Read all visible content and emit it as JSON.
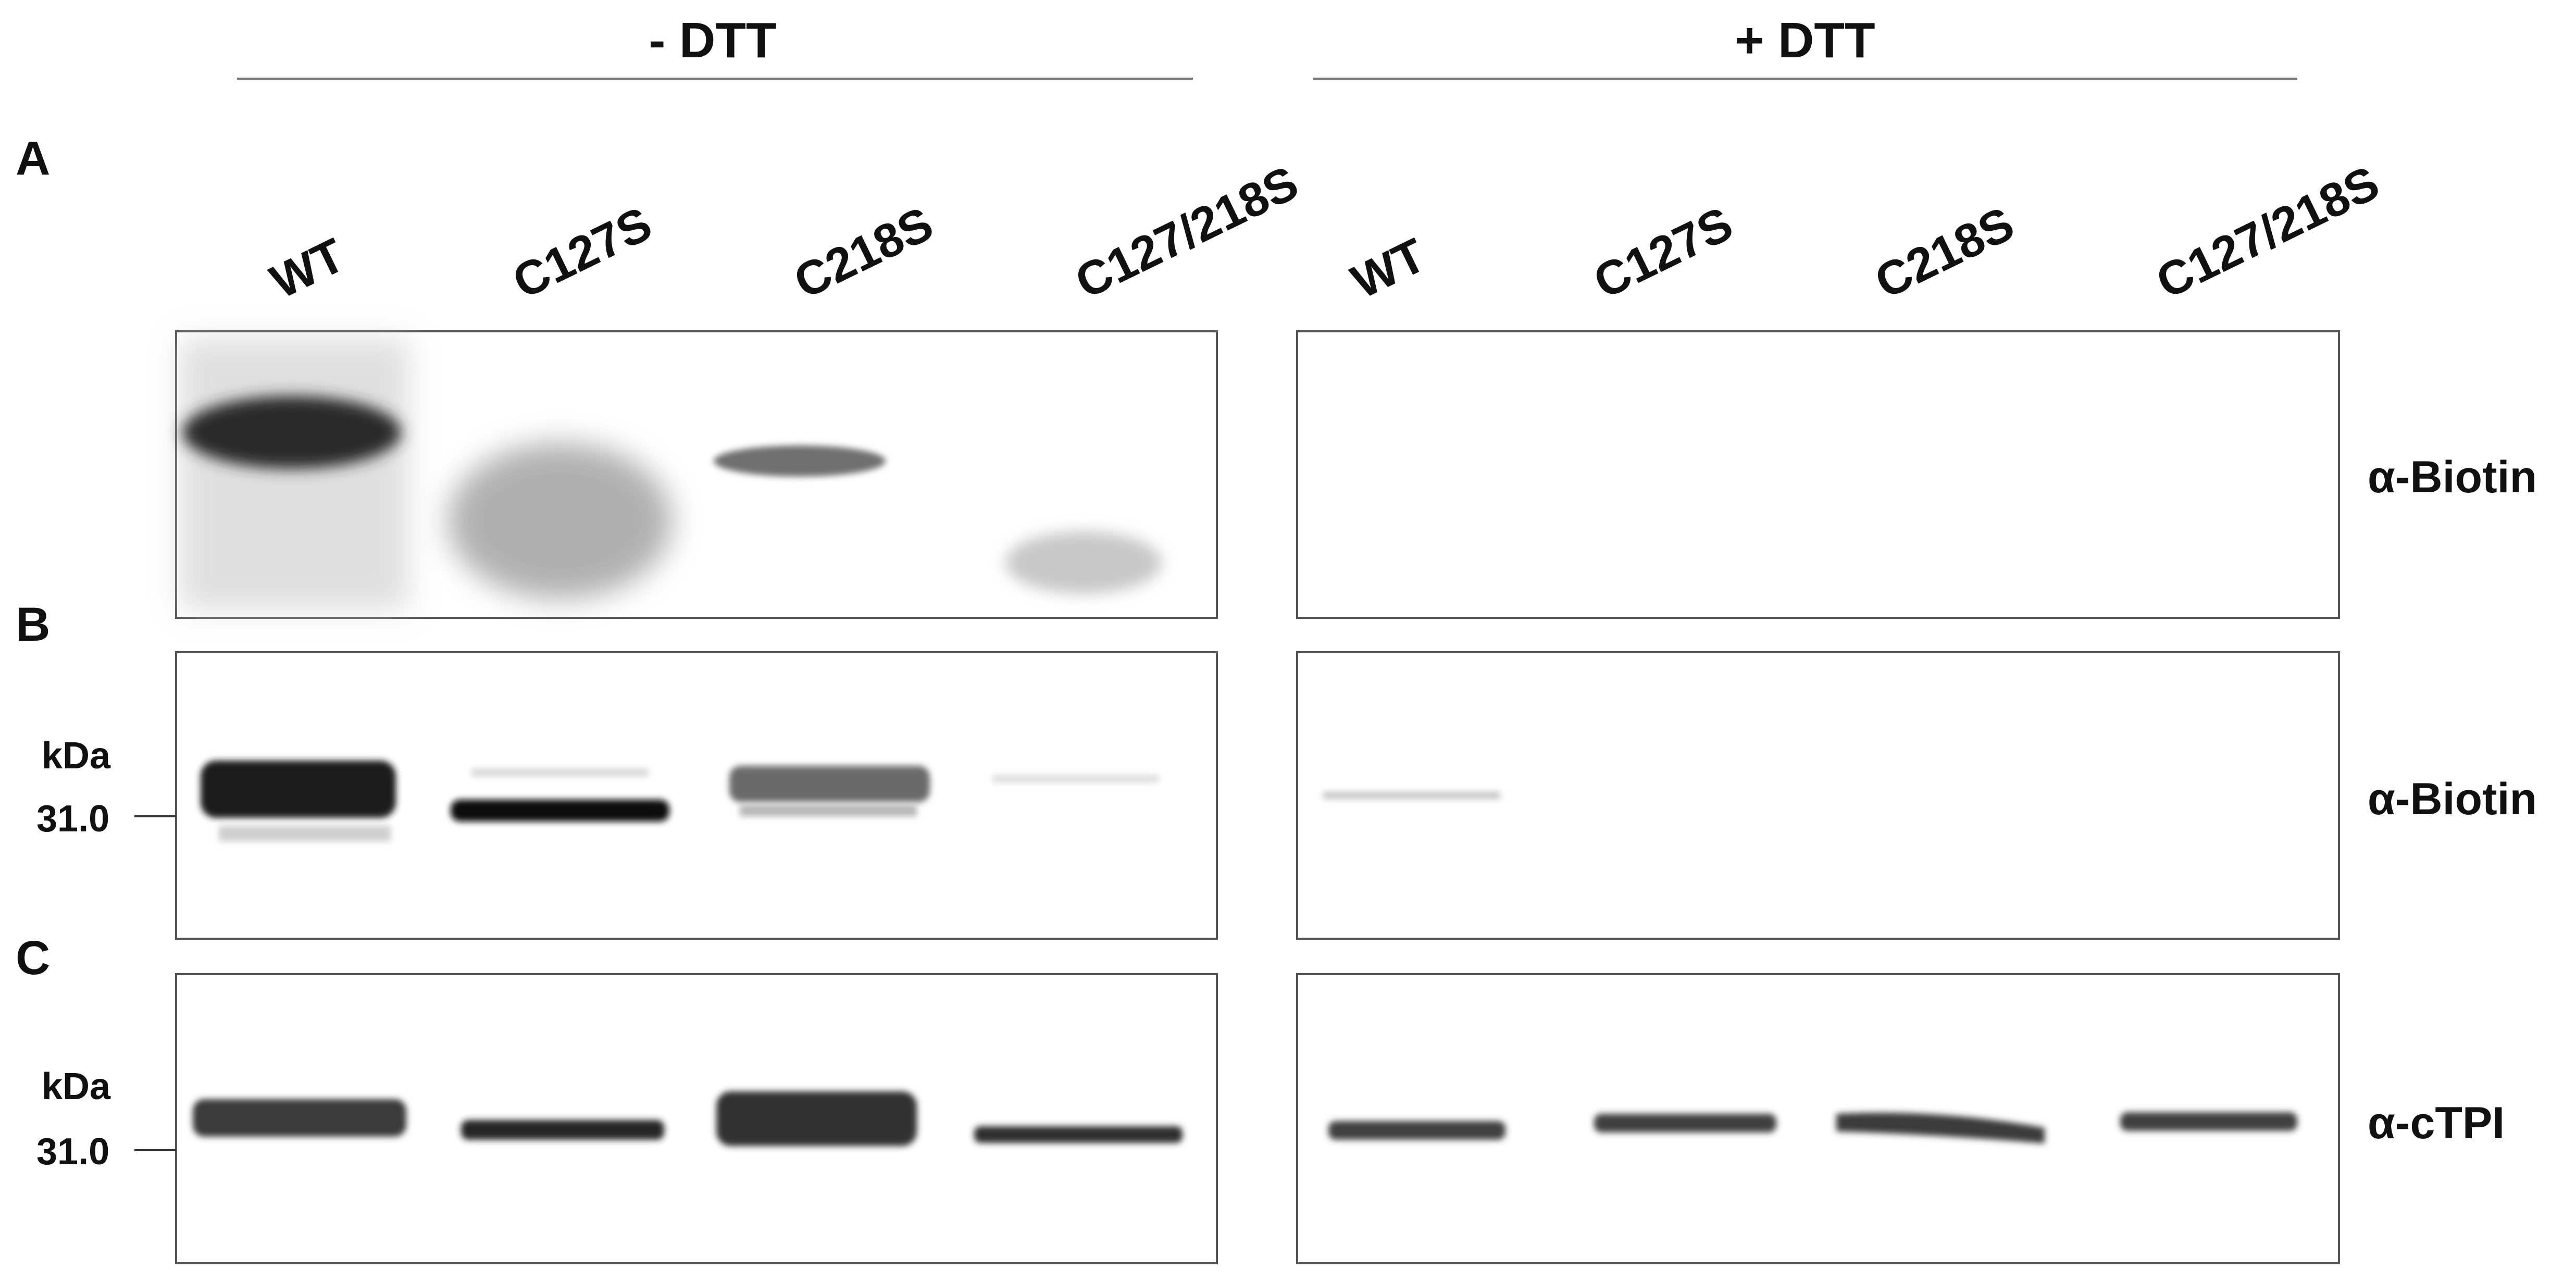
{
  "conditions": [
    {
      "label": "- DTT"
    },
    {
      "label": "+ DTT"
    }
  ],
  "panels": [
    {
      "letter": "A",
      "antibody": "α-Biotin",
      "marker": {
        "unit": "",
        "value": ""
      }
    },
    {
      "letter": "B",
      "antibody": "α-Biotin",
      "marker": {
        "unit": "kDa",
        "value": "31.0"
      }
    },
    {
      "letter": "C",
      "antibody": "α-cTPI",
      "marker": {
        "unit": "kDa",
        "value": "31.0"
      }
    }
  ],
  "lanes": {
    "minus_dtt": [
      "WT",
      "C127S",
      "C218S",
      "C127/218S"
    ],
    "plus_dtt": [
      "WT",
      "C127S",
      "C218S",
      "C127/218S"
    ]
  },
  "colors": {
    "frame": "#555555",
    "band": "#1a1a1a",
    "text": "#111111"
  }
}
